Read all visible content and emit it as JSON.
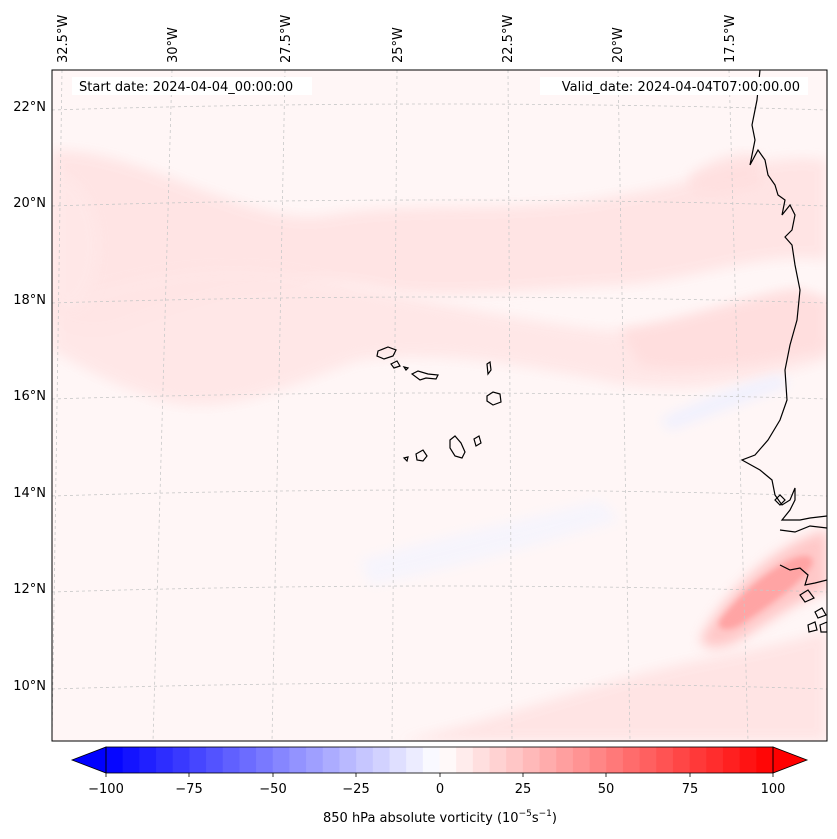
{
  "map": {
    "start_date_label": "Start date: 2024-04-04_00:00:00",
    "valid_date_label": "Valid_date: 2024-04-04T07:00:00.00",
    "lon_labels": [
      "32.5°W",
      "30°W",
      "27.5°W",
      "25°W",
      "22.5°W",
      "20°W",
      "17.5°W"
    ],
    "lat_labels": [
      "22°N",
      "20°N",
      "18°N",
      "16°N",
      "14°N",
      "12°N",
      "10°N"
    ],
    "field": "850 hPa absolute vorticity",
    "background_color": "#fff5f5"
  },
  "colorbar": {
    "ticks": [
      "−100",
      "−75",
      "−50",
      "−25",
      "0",
      "25",
      "50",
      "75",
      "100"
    ],
    "label_main": "850 hPa absolute vorticity (10",
    "label_exp1": "−5",
    "label_mid": "s",
    "label_exp2": "−1",
    "label_end": ")",
    "min_color": "#0000ff",
    "mid_color": "#ffffff",
    "max_color": "#ff0000",
    "levels": 40
  }
}
